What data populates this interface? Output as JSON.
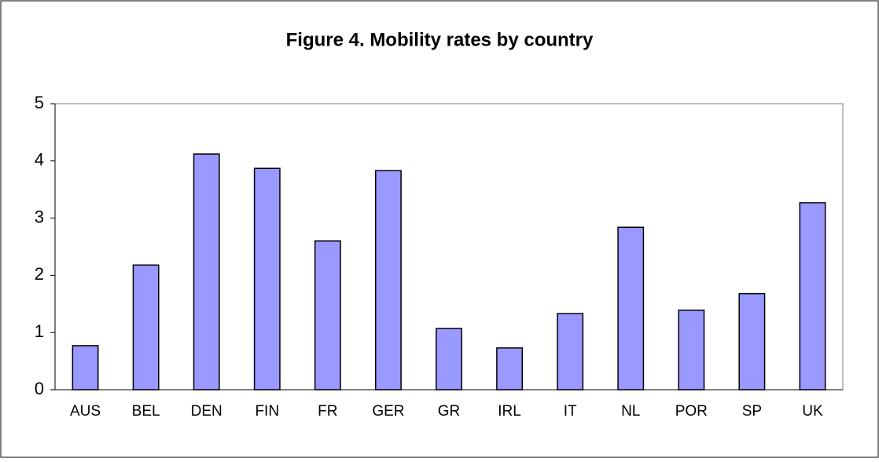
{
  "chart_data": {
    "type": "bar",
    "title": "Figure 4. Mobility rates by country",
    "categories": [
      "AUS",
      "BEL",
      "DEN",
      "FIN",
      "FR",
      "GER",
      "GR",
      "IRL",
      "IT",
      "NL",
      "POR",
      "SP",
      "UK"
    ],
    "values": [
      0.77,
      2.18,
      4.12,
      3.87,
      2.6,
      3.83,
      1.07,
      0.73,
      1.33,
      2.84,
      1.39,
      1.68,
      3.27
    ],
    "color": "#9999ff",
    "ylim": [
      0,
      5
    ],
    "yticks": [
      0,
      1,
      2,
      3,
      4,
      5
    ],
    "grid": false
  }
}
